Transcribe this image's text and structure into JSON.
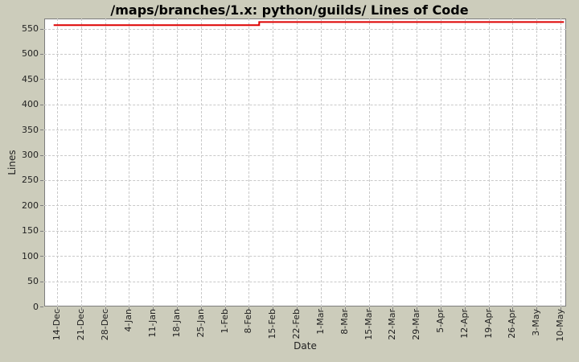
{
  "title": "/maps/branches/1.x: python/guilds/ Lines of Code",
  "colors": {
    "background": "#ccccbb",
    "plot_background": "#ffffff",
    "gridline": "#c9c9c9",
    "axis": "#7e7e7e",
    "tick_label": "#222222",
    "series_line": "#dd0000"
  },
  "chart_data": {
    "type": "line",
    "title": "/maps/branches/1.x: python/guilds/ Lines of Code",
    "xlabel": "Date",
    "ylabel": "Lines",
    "grid": true,
    "legend": "none",
    "x_tick_labels": [
      "14-Dec",
      "21-Dec",
      "28-Dec",
      "4-Jan",
      "11-Jan",
      "18-Jan",
      "25-Jan",
      "1-Feb",
      "8-Feb",
      "15-Feb",
      "22-Feb",
      "1-Mar",
      "8-Mar",
      "15-Mar",
      "22-Mar",
      "29-Mar",
      "5-Apr",
      "12-Apr",
      "19-Apr",
      "26-Apr",
      "3-May",
      "10-May"
    ],
    "x_tick_interval_days": 7,
    "y_ticks": [
      0,
      50,
      100,
      150,
      200,
      250,
      300,
      350,
      400,
      450,
      500,
      550
    ],
    "ylim": [
      0,
      570
    ],
    "series": [
      {
        "name": "Lines of Code",
        "color": "#dd0000",
        "step": true,
        "points_day_value": [
          [
            -1,
            557
          ],
          [
            59,
            557
          ],
          [
            59,
            563
          ],
          [
            148,
            563
          ]
        ],
        "note": "flat at ~557 LOC from mid-Dec, steps up to ~563 LOC around 11-Feb, flat through 10-May"
      }
    ]
  }
}
